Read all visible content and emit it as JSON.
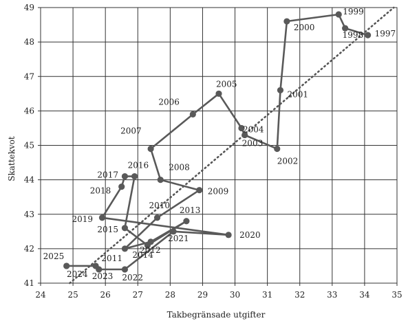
{
  "chart_data": {
    "type": "line",
    "xlabel": "Takbegränsade utgifter",
    "ylabel": "Skattekvot",
    "xlim": [
      24,
      35
    ],
    "ylim": [
      41,
      49
    ],
    "xticks": [
      "24",
      "25",
      "26",
      "27",
      "28",
      "29",
      "30",
      "31",
      "32",
      "33",
      "34",
      "35"
    ],
    "yticks": [
      "41",
      "42",
      "43",
      "44",
      "45",
      "46",
      "47",
      "48",
      "49"
    ],
    "grid": true,
    "line_color": "#595959",
    "reference_line": {
      "style": "dotted",
      "x": [
        24.9,
        34.9
      ],
      "y": [
        41,
        49
      ]
    },
    "points": [
      {
        "label": "1997",
        "x": 34.1,
        "y": 48.2
      },
      {
        "label": "1998",
        "x": 33.4,
        "y": 48.4
      },
      {
        "label": "1999",
        "x": 33.2,
        "y": 48.8
      },
      {
        "label": "2000",
        "x": 31.6,
        "y": 48.6
      },
      {
        "label": "2001",
        "x": 31.4,
        "y": 46.6
      },
      {
        "label": "2002",
        "x": 31.3,
        "y": 44.9
      },
      {
        "label": "2003",
        "x": 30.3,
        "y": 45.3
      },
      {
        "label": "2004",
        "x": 30.2,
        "y": 45.5
      },
      {
        "label": "2005",
        "x": 29.5,
        "y": 46.5
      },
      {
        "label": "2006",
        "x": 28.7,
        "y": 45.9
      },
      {
        "label": "2007",
        "x": 27.4,
        "y": 44.9
      },
      {
        "label": "2008",
        "x": 27.7,
        "y": 44.0
      },
      {
        "label": "2009",
        "x": 28.9,
        "y": 43.7
      },
      {
        "label": "2010",
        "x": 27.6,
        "y": 42.9
      },
      {
        "label": "2011",
        "x": 26.6,
        "y": 42.0
      },
      {
        "label": "2012",
        "x": 27.4,
        "y": 42.2
      },
      {
        "label": "2013",
        "x": 28.5,
        "y": 42.8
      },
      {
        "label": "2014",
        "x": 27.3,
        "y": 42.1
      },
      {
        "label": "2015",
        "x": 26.6,
        "y": 42.6
      },
      {
        "label": "2016",
        "x": 26.9,
        "y": 44.1
      },
      {
        "label": "2017",
        "x": 26.6,
        "y": 44.1
      },
      {
        "label": "2018",
        "x": 26.5,
        "y": 43.8
      },
      {
        "label": "2019",
        "x": 25.9,
        "y": 42.9
      },
      {
        "label": "2020",
        "x": 29.8,
        "y": 42.4
      },
      {
        "label": "2021",
        "x": 28.1,
        "y": 42.5
      },
      {
        "label": "2022",
        "x": 26.6,
        "y": 41.4
      },
      {
        "label": "2023",
        "x": 25.8,
        "y": 41.4
      },
      {
        "label": "2024",
        "x": 25.7,
        "y": 41.5
      },
      {
        "label": "2025",
        "x": 24.8,
        "y": 41.5
      }
    ]
  }
}
